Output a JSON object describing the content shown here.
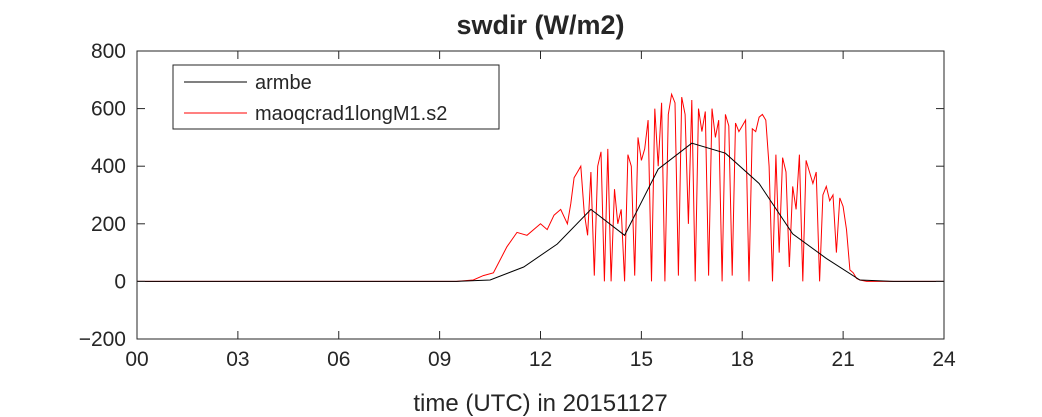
{
  "chart_data": {
    "type": "line",
    "title": "swdir  (W/m2)",
    "xlabel": "time (UTC) in 20151127",
    "ylabel": "",
    "xlim": [
      0,
      24
    ],
    "ylim": [
      -200,
      800
    ],
    "x_ticks": [
      0,
      3,
      6,
      9,
      12,
      15,
      18,
      21,
      24
    ],
    "x_tick_labels": [
      "00",
      "03",
      "06",
      "09",
      "12",
      "15",
      "18",
      "21",
      "24"
    ],
    "y_ticks": [
      -200,
      0,
      200,
      400,
      600,
      800
    ],
    "y_tick_labels": [
      "−200",
      "0",
      "200",
      "400",
      "600",
      "800"
    ],
    "grid": false,
    "legend_position": "top-left",
    "series": [
      {
        "name": "armbe",
        "color": "#000000",
        "x": [
          0,
          0.5,
          1.5,
          2.5,
          3.5,
          4.5,
          5.5,
          6.5,
          7.5,
          8.5,
          9.5,
          10.5,
          11.5,
          12.5,
          13.5,
          14.5,
          15.5,
          16.5,
          17.5,
          18.5,
          19.5,
          20.5,
          21.5,
          22.5,
          23.5,
          24
        ],
        "y": [
          0,
          0,
          0,
          0,
          0,
          0,
          0,
          0,
          0,
          0,
          0,
          5,
          50,
          130,
          250,
          160,
          390,
          480,
          445,
          340,
          165,
          80,
          5,
          0,
          0,
          0
        ]
      },
      {
        "name": "maoqcrad1longM1.s2",
        "color": "#ff0000",
        "x": [
          0,
          9.5,
          10,
          10.3,
          10.6,
          11,
          11.3,
          11.6,
          12,
          12.2,
          12.4,
          12.6,
          12.8,
          12.9,
          13,
          13.1,
          13.2,
          13.3,
          13.4,
          13.5,
          13.6,
          13.7,
          13.8,
          13.9,
          14,
          14.1,
          14.2,
          14.3,
          14.4,
          14.5,
          14.6,
          14.7,
          14.8,
          14.9,
          15,
          15.1,
          15.2,
          15.3,
          15.4,
          15.5,
          15.6,
          15.7,
          15.8,
          15.9,
          16,
          16.1,
          16.2,
          16.3,
          16.4,
          16.5,
          16.6,
          16.7,
          16.8,
          16.9,
          17,
          17.1,
          17.2,
          17.3,
          17.4,
          17.5,
          17.6,
          17.7,
          17.8,
          17.9,
          18,
          18.1,
          18.2,
          18.3,
          18.4,
          18.5,
          18.6,
          18.7,
          18.8,
          18.9,
          19,
          19.1,
          19.2,
          19.3,
          19.4,
          19.5,
          19.6,
          19.7,
          19.8,
          19.9,
          20,
          20.1,
          20.2,
          20.3,
          20.4,
          20.5,
          20.6,
          20.7,
          20.8,
          20.9,
          21,
          21.1,
          21.2,
          21.3,
          21.4,
          21.5,
          21.7,
          22,
          22.5,
          24
        ],
        "y": [
          0,
          0,
          5,
          20,
          30,
          120,
          170,
          160,
          200,
          180,
          230,
          250,
          200,
          270,
          360,
          380,
          400,
          240,
          160,
          380,
          20,
          400,
          450,
          0,
          460,
          0,
          320,
          200,
          250,
          0,
          440,
          400,
          20,
          500,
          420,
          460,
          560,
          0,
          600,
          400,
          620,
          0,
          580,
          650,
          620,
          20,
          640,
          580,
          200,
          630,
          0,
          600,
          520,
          590,
          20,
          600,
          500,
          560,
          0,
          580,
          540,
          20,
          550,
          520,
          540,
          560,
          0,
          530,
          520,
          570,
          580,
          560,
          400,
          0,
          440,
          100,
          430,
          380,
          50,
          330,
          250,
          440,
          0,
          420,
          380,
          340,
          380,
          0,
          300,
          330,
          280,
          300,
          100,
          290,
          260,
          180,
          40,
          30,
          10,
          5,
          0,
          0,
          0,
          0
        ]
      }
    ]
  }
}
